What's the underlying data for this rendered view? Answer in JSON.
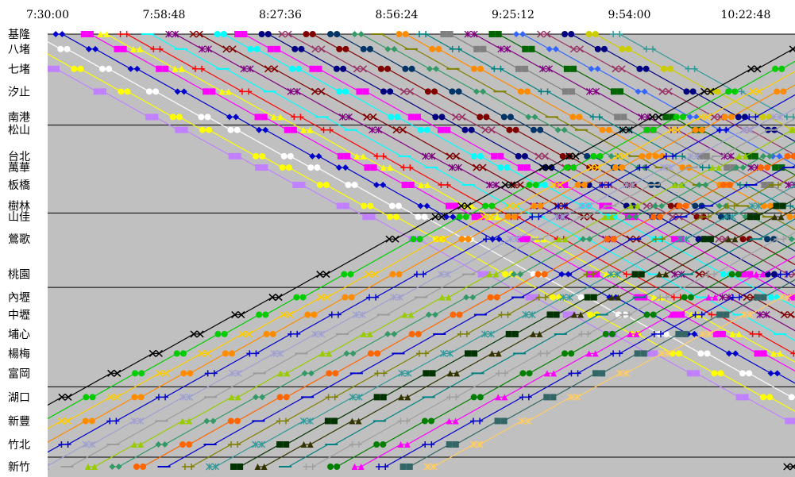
{
  "chart_data": {
    "type": "line",
    "title": "",
    "xlabel": "",
    "ylabel": "",
    "x_ticks": [
      "7:30:00",
      "7:58:48",
      "8:27:36",
      "8:56:24",
      "9:25:12",
      "9:54:00",
      "10:22:48"
    ],
    "x_tick_minutes": [
      450,
      478.8,
      507.6,
      536.4,
      565.2,
      594.0,
      622.8
    ],
    "xlim_minutes": [
      450,
      635
    ],
    "stations": [
      {
        "name": "基隆",
        "pos": 0
      },
      {
        "name": "八堵",
        "pos": 3.7
      },
      {
        "name": "七堵",
        "pos": 8.6
      },
      {
        "name": "汐止",
        "pos": 14.2
      },
      {
        "name": "南港",
        "pos": 20.5
      },
      {
        "name": "松山",
        "pos": 23.7
      },
      {
        "name": "台北",
        "pos": 30.2
      },
      {
        "name": "萬華",
        "pos": 33.0
      },
      {
        "name": "板橋",
        "pos": 37.3
      },
      {
        "name": "樹林",
        "pos": 42.5
      },
      {
        "name": "山佳",
        "pos": 45.2
      },
      {
        "name": "鶯歌",
        "pos": 50.7
      },
      {
        "name": "桃園",
        "pos": 59.4
      },
      {
        "name": "內壢",
        "pos": 65.1
      },
      {
        "name": "中壢",
        "pos": 69.4
      },
      {
        "name": "埔心",
        "pos": 74.2
      },
      {
        "name": "楊梅",
        "pos": 79.0
      },
      {
        "name": "富岡",
        "pos": 83.9
      },
      {
        "name": "湖口",
        "pos": 89.8
      },
      {
        "name": "新豐",
        "pos": 95.7
      },
      {
        "name": "竹北",
        "pos": 101.5
      },
      {
        "name": "新竹",
        "pos": 107.0
      }
    ],
    "separator_after": [
      "南港",
      "樹林",
      "桃園",
      "富岡",
      "竹北"
    ],
    "grid": false,
    "background": "#c0c0c0",
    "colors": [
      "#0000cd",
      "#ff00ff",
      "#ffff00",
      "#00ffff",
      "#800080",
      "#800000",
      "#008080",
      "#0000ff",
      "#00bfff",
      "#ccffff",
      "#cfffcf",
      "#ffff99",
      "#99ccff",
      "#ff99cc",
      "#cc99ff",
      "#ffcc99",
      "#3366ff",
      "#33cccc",
      "#99cc00",
      "#ffcc00",
      "#ff9900",
      "#ff6600",
      "#666699",
      "#969696",
      "#003366",
      "#339966",
      "#003300",
      "#333300",
      "#993300",
      "#993366",
      "#333399",
      "#ff0000",
      "#000000",
      "#00ff00",
      "#ff8c00",
      "#a0522d",
      "#808000",
      "#ffffff"
    ],
    "markers": [
      "diamond",
      "square",
      "triangle",
      "x",
      "asterisk",
      "circle",
      "plus",
      "dash"
    ],
    "series": [
      {
        "dir": "down",
        "start": 432,
        "cycle": 42,
        "color": "#c080ff",
        "marker": "square"
      },
      {
        "dir": "down",
        "start": 438,
        "cycle": 42,
        "color": "#ffff00",
        "marker": "circle"
      },
      {
        "dir": "down",
        "start": 445,
        "cycle": 42,
        "color": "#ffffff",
        "marker": "circle"
      },
      {
        "dir": "down",
        "start": 452,
        "cycle": 42,
        "color": "#0000cd",
        "marker": "diamond"
      },
      {
        "dir": "down",
        "start": 459,
        "cycle": 42,
        "color": "#ff00ff",
        "marker": "square"
      },
      {
        "dir": "down",
        "start": 463,
        "cycle": 42,
        "color": "#ffff00",
        "marker": "triangle"
      },
      {
        "dir": "down",
        "start": 468,
        "cycle": 42,
        "color": "#ff0000",
        "marker": "plus"
      },
      {
        "dir": "down",
        "start": 474,
        "cycle": 42,
        "color": "#00ffff",
        "marker": "dash"
      },
      {
        "dir": "down",
        "start": 480,
        "cycle": 42,
        "color": "#800080",
        "marker": "asterisk"
      },
      {
        "dir": "down",
        "start": 486,
        "cycle": 42,
        "color": "#800000",
        "marker": "x"
      },
      {
        "dir": "down",
        "start": 492,
        "cycle": 42,
        "color": "#00ffff",
        "marker": "circle"
      },
      {
        "dir": "down",
        "start": 497,
        "cycle": 42,
        "color": "#ff00ff",
        "marker": "square"
      },
      {
        "dir": "down",
        "start": 503,
        "cycle": 42,
        "color": "#000080",
        "marker": "circle"
      },
      {
        "dir": "down",
        "start": 508,
        "cycle": 42,
        "color": "#993366",
        "marker": "x"
      },
      {
        "dir": "down",
        "start": 514,
        "cycle": 42,
        "color": "#800000",
        "marker": "circle"
      },
      {
        "dir": "down",
        "start": 520,
        "cycle": 42,
        "color": "#003366",
        "marker": "circle"
      },
      {
        "dir": "down",
        "start": 526,
        "cycle": 42,
        "color": "#339966",
        "marker": "diamond"
      },
      {
        "dir": "down",
        "start": 531,
        "cycle": 42,
        "color": "#808000",
        "marker": "dash"
      },
      {
        "dir": "down",
        "start": 537,
        "cycle": 42,
        "color": "#ff8c00",
        "marker": "circle"
      },
      {
        "dir": "down",
        "start": 542,
        "cycle": 42,
        "color": "#008080",
        "marker": "plus"
      },
      {
        "dir": "down",
        "start": 548,
        "cycle": 42,
        "color": "#808080",
        "marker": "square"
      },
      {
        "dir": "down",
        "start": 554,
        "cycle": 42,
        "color": "#800080",
        "marker": "asterisk"
      },
      {
        "dir": "down",
        "start": 560,
        "cycle": 42,
        "color": "#006400",
        "marker": "square"
      },
      {
        "dir": "down",
        "start": 566,
        "cycle": 42,
        "color": "#3366ff",
        "marker": "diamond"
      },
      {
        "dir": "down",
        "start": 572,
        "cycle": 42,
        "color": "#993366",
        "marker": "x"
      },
      {
        "dir": "down",
        "start": 578,
        "cycle": 42,
        "color": "#000080",
        "marker": "circle"
      },
      {
        "dir": "down",
        "start": 584,
        "cycle": 42,
        "color": "#cccc00",
        "marker": "circle"
      },
      {
        "dir": "down",
        "start": 590,
        "cycle": 42,
        "color": "#339999",
        "marker": "plus"
      },
      {
        "dir": "up",
        "start": 418,
        "cycle": 43,
        "color": "#000000",
        "marker": "x"
      },
      {
        "dir": "up",
        "start": 424,
        "cycle": 43,
        "color": "#00cc00",
        "marker": "circle"
      },
      {
        "dir": "up",
        "start": 430,
        "cycle": 43,
        "color": "#ffcc00",
        "marker": "x"
      },
      {
        "dir": "up",
        "start": 436,
        "cycle": 43,
        "color": "#ff8c00",
        "marker": "circle"
      },
      {
        "dir": "up",
        "start": 442,
        "cycle": 43,
        "color": "#0000cd",
        "marker": "plus"
      },
      {
        "dir": "up",
        "start": 448,
        "cycle": 43,
        "color": "#a0a0d0",
        "marker": "asterisk"
      },
      {
        "dir": "up",
        "start": 454,
        "cycle": 43,
        "color": "#9c9c9c",
        "marker": "dash"
      },
      {
        "dir": "up",
        "start": 460,
        "cycle": 43,
        "color": "#99cc00",
        "marker": "triangle"
      },
      {
        "dir": "up",
        "start": 466,
        "cycle": 43,
        "color": "#339966",
        "marker": "diamond"
      },
      {
        "dir": "up",
        "start": 472,
        "cycle": 43,
        "color": "#ff6600",
        "marker": "circle"
      },
      {
        "dir": "up",
        "start": 478,
        "cycle": 43,
        "color": "#0000cd",
        "marker": "dash"
      },
      {
        "dir": "up",
        "start": 484,
        "cycle": 43,
        "color": "#808000",
        "marker": "plus"
      },
      {
        "dir": "up",
        "start": 490,
        "cycle": 43,
        "color": "#339999",
        "marker": "asterisk"
      },
      {
        "dir": "up",
        "start": 496,
        "cycle": 43,
        "color": "#003300",
        "marker": "square"
      },
      {
        "dir": "up",
        "start": 502,
        "cycle": 43,
        "color": "#333300",
        "marker": "triangle"
      },
      {
        "dir": "up",
        "start": 508,
        "cycle": 43,
        "color": "#008080",
        "marker": "dash"
      },
      {
        "dir": "up",
        "start": 514,
        "cycle": 43,
        "color": "#a0a0a0",
        "marker": "plus"
      },
      {
        "dir": "up",
        "start": 520,
        "cycle": 43,
        "color": "#008000",
        "marker": "circle"
      },
      {
        "dir": "up",
        "start": 526,
        "cycle": 43,
        "color": "#ff00ff",
        "marker": "triangle"
      },
      {
        "dir": "up",
        "start": 532,
        "cycle": 43,
        "color": "#0000cd",
        "marker": "plus"
      },
      {
        "dir": "up",
        "start": 538,
        "cycle": 43,
        "color": "#336666",
        "marker": "square"
      },
      {
        "dir": "up",
        "start": 544,
        "cycle": 43,
        "color": "#ffcc66",
        "marker": "asterisk"
      }
    ]
  }
}
